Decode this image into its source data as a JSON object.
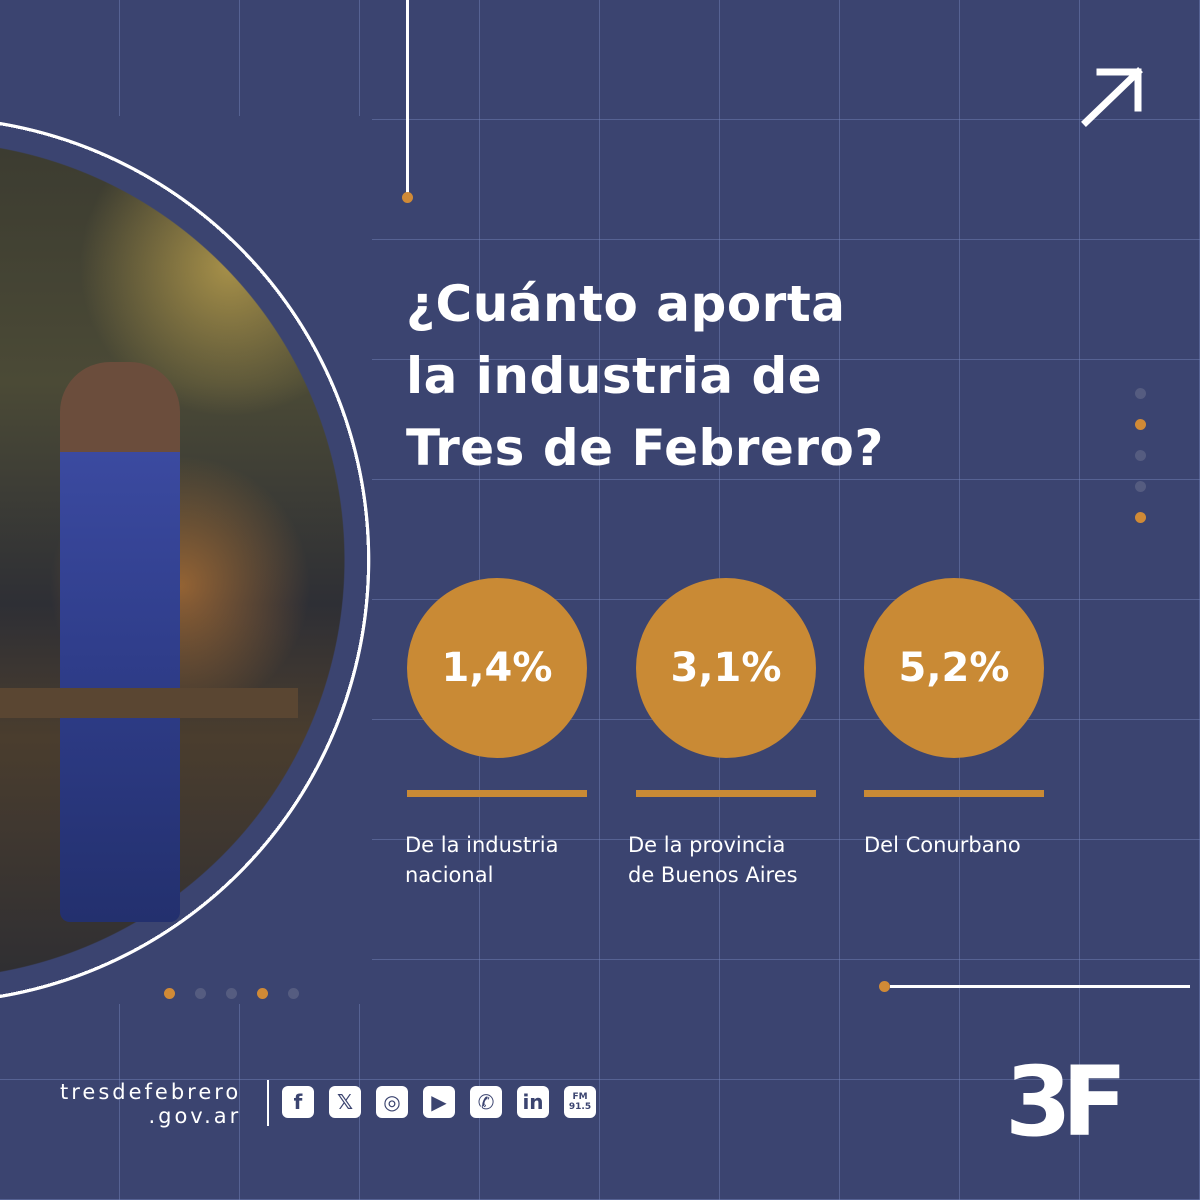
{
  "title": "¿Cuánto aporta la industria de Tres de Febrero?",
  "title_lines": [
    "¿Cuánto aporta",
    "la industria de",
    "Tres de Febrero?"
  ],
  "stats": [
    {
      "value": "1,4%",
      "label_lines": [
        "De la industria",
        "nacional"
      ]
    },
    {
      "value": "3,1%",
      "label_lines": [
        "De la provincia",
        "de Buenos Aires"
      ]
    },
    {
      "value": "5,2%",
      "label_lines": [
        "Del Conurbano",
        ""
      ]
    }
  ],
  "footer": {
    "site_line1": "tresdefebrero",
    "site_line2": ".gov.ar",
    "social_icons": [
      "facebook-icon",
      "x-icon",
      "instagram-icon",
      "youtube-icon",
      "whatsapp-icon",
      "linkedin-icon",
      "fm-radio-icon"
    ],
    "social_glyphs": [
      "f",
      "𝕏",
      "◎",
      "▶",
      "✆",
      "in",
      "FM 91.5"
    ],
    "logo": "3F"
  },
  "colors": {
    "background": "#3b4470",
    "accent": "#c98a35",
    "text": "#ffffff"
  }
}
